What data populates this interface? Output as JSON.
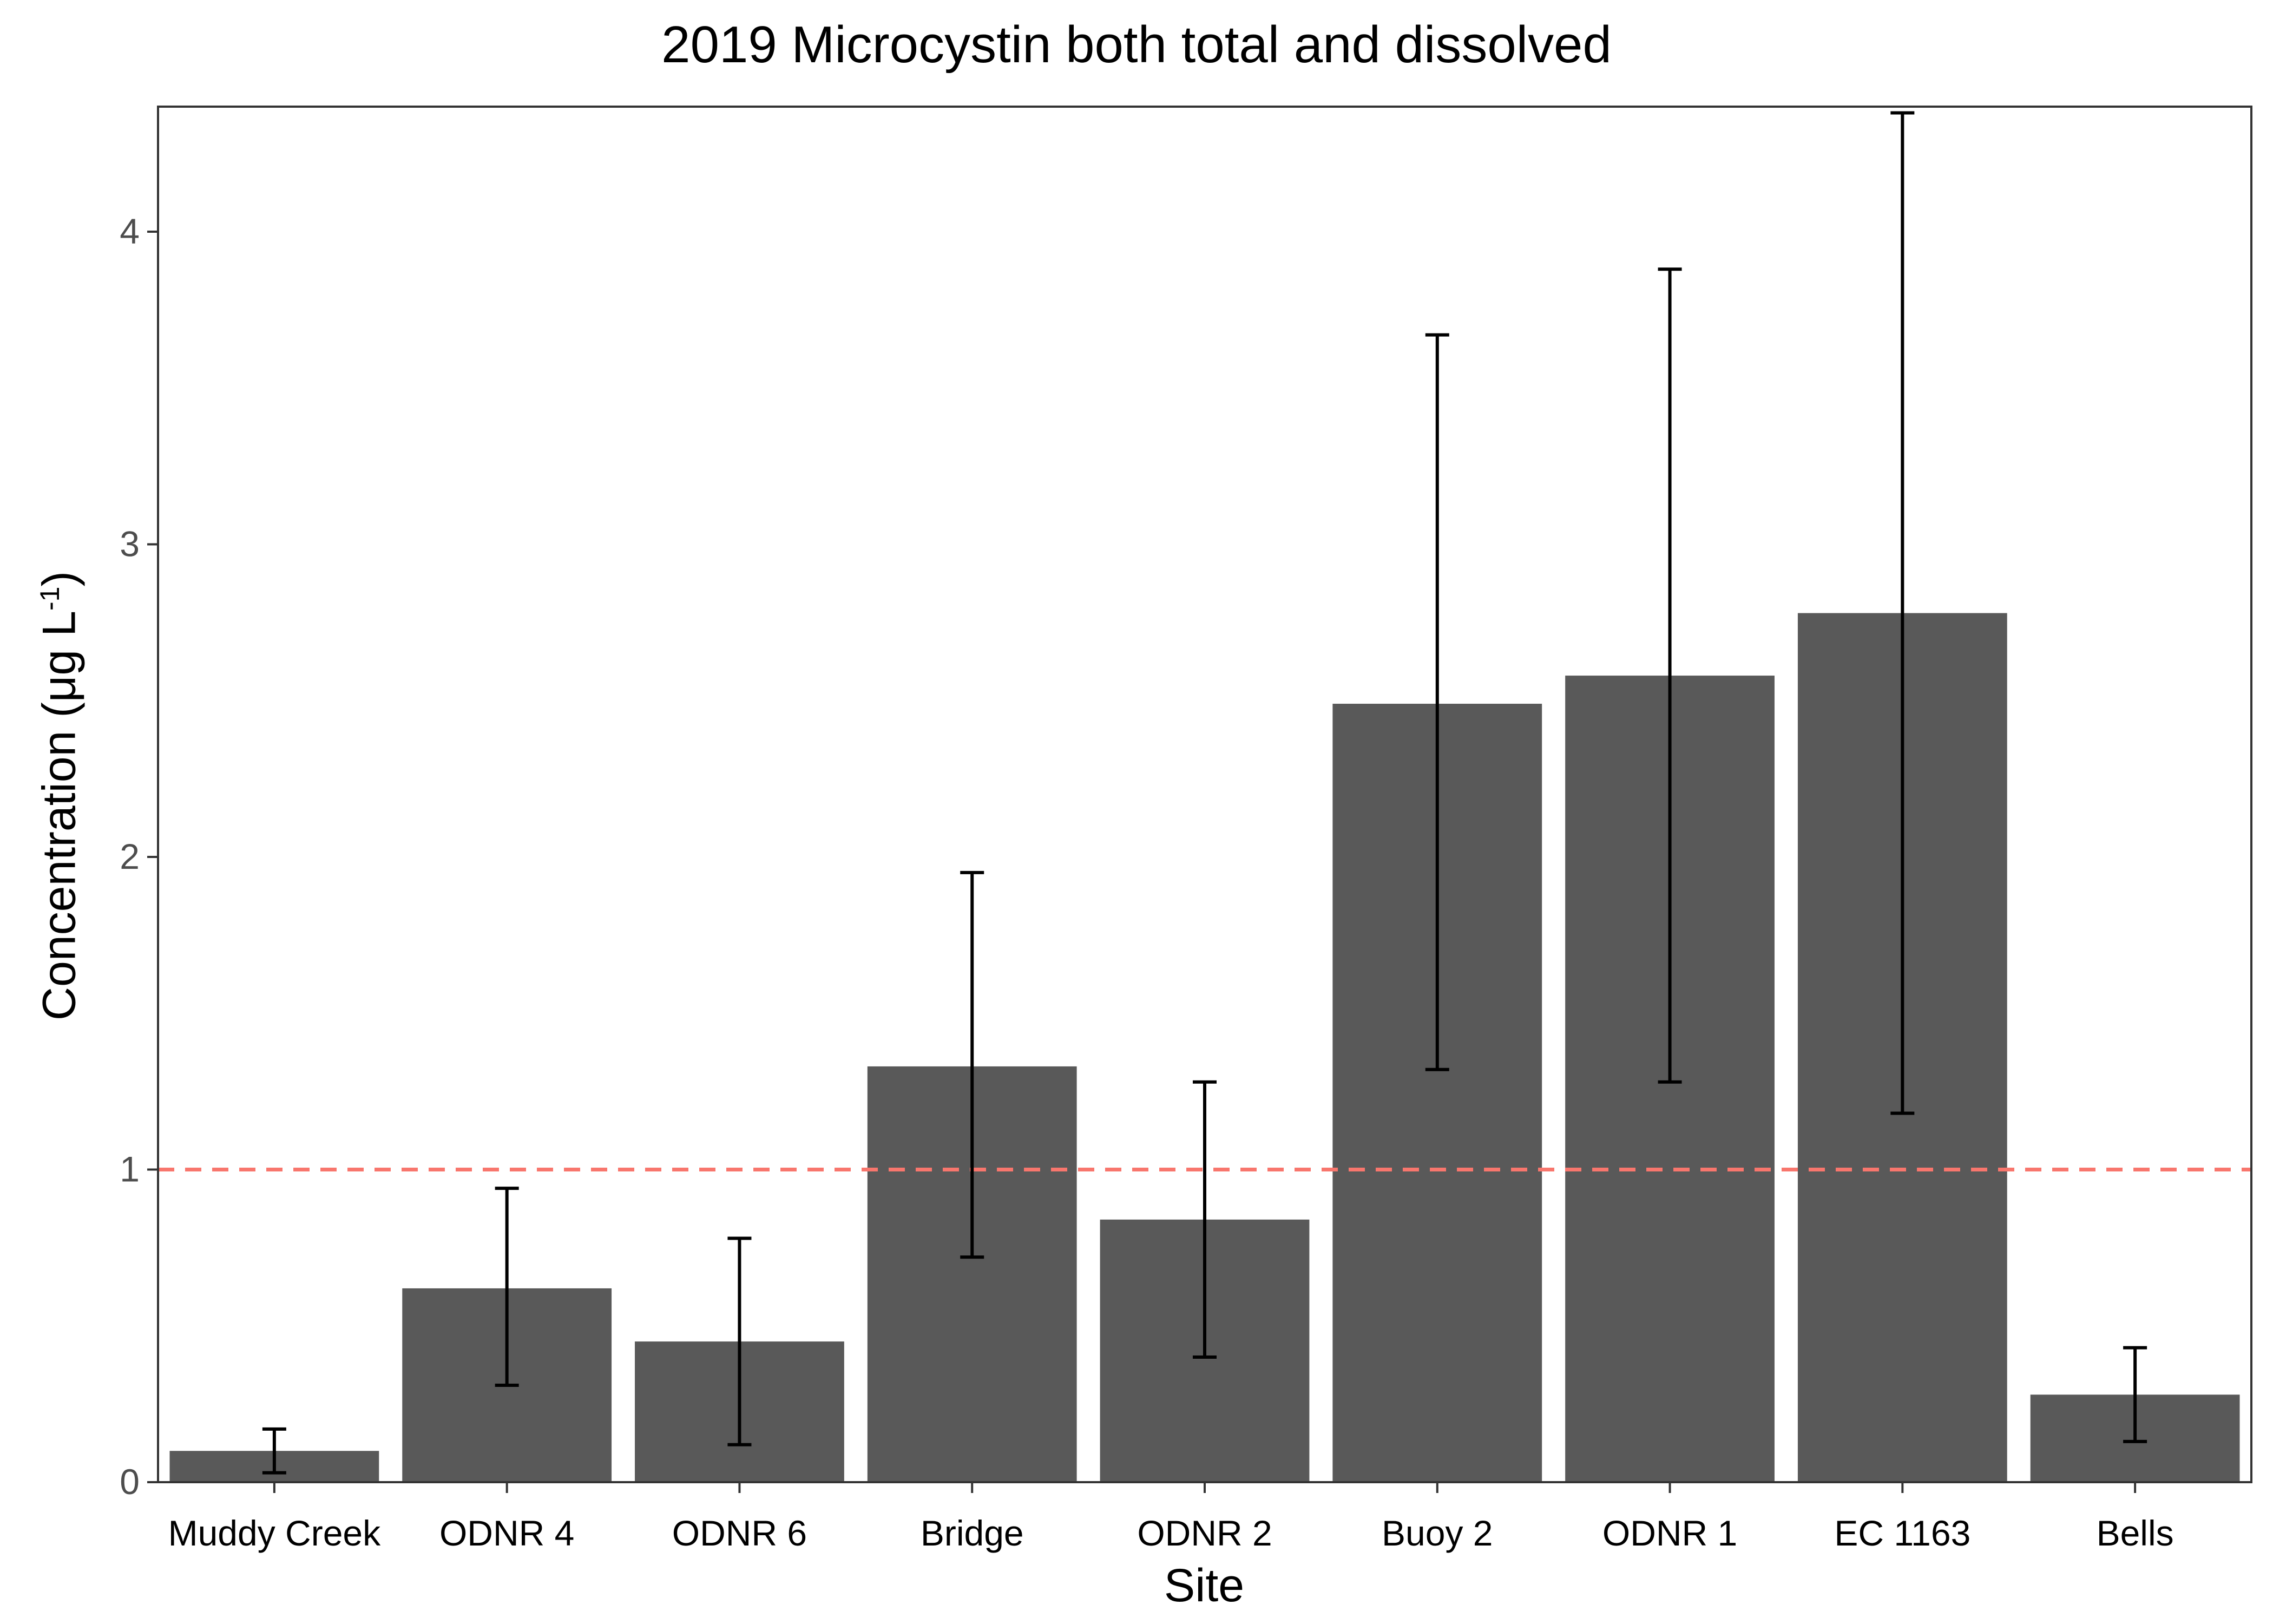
{
  "chart_data": {
    "type": "bar",
    "title": "2019 Microcystin both total and dissolved",
    "xlabel": "Site",
    "ylabel_main": "Concentration (μg L",
    "ylabel_sup": "-1",
    "ylabel_close": ")",
    "categories": [
      "Muddy Creek",
      "ODNR 4",
      "ODNR 6",
      "Bridge",
      "ODNR 2",
      "Buoy 2",
      "ODNR 1",
      "EC 1163",
      "Bells"
    ],
    "values": [
      0.1,
      0.62,
      0.45,
      1.33,
      0.84,
      2.49,
      2.58,
      2.78,
      0.28
    ],
    "error_low": [
      0.03,
      0.31,
      0.12,
      0.72,
      0.4,
      1.32,
      1.28,
      1.18,
      0.13
    ],
    "error_high": [
      0.17,
      0.94,
      0.78,
      1.95,
      1.28,
      3.67,
      3.88,
      4.38,
      0.43
    ],
    "ylim": [
      0,
      4.4
    ],
    "yticks": [
      0,
      1,
      2,
      3,
      4
    ],
    "reference_line": 1,
    "grid": false,
    "colors": {
      "bar": "#595959",
      "reference_line": "#f8766d",
      "error_bar": "#000000"
    }
  }
}
